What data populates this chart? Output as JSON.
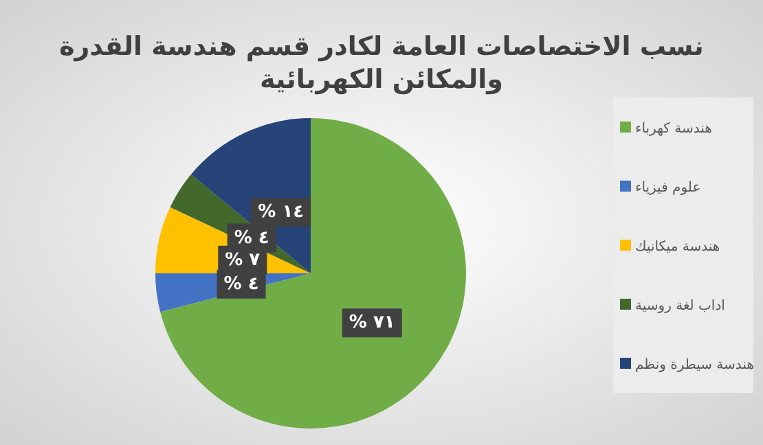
{
  "chart_data": {
    "type": "pie",
    "title": "نسب الاختصاصات العامة  لكادر قسم هندسة القدرة والمكائن الكهربائية",
    "categories": [
      "هندسة كهرباء",
      "علوم فيزياء",
      "هندسة ميكانيك",
      "اداب لغة روسية",
      "هندسة سيطرة ونظم"
    ],
    "values": [
      71,
      4,
      7,
      4,
      14
    ],
    "colors": [
      "#70ad47",
      "#4472c4",
      "#ffc000",
      "#43682b",
      "#264478"
    ],
    "value_labels": [
      "٧١ %",
      "٤ %",
      "٧ %",
      "٤ %",
      "١٤ %"
    ],
    "legend": "right"
  }
}
